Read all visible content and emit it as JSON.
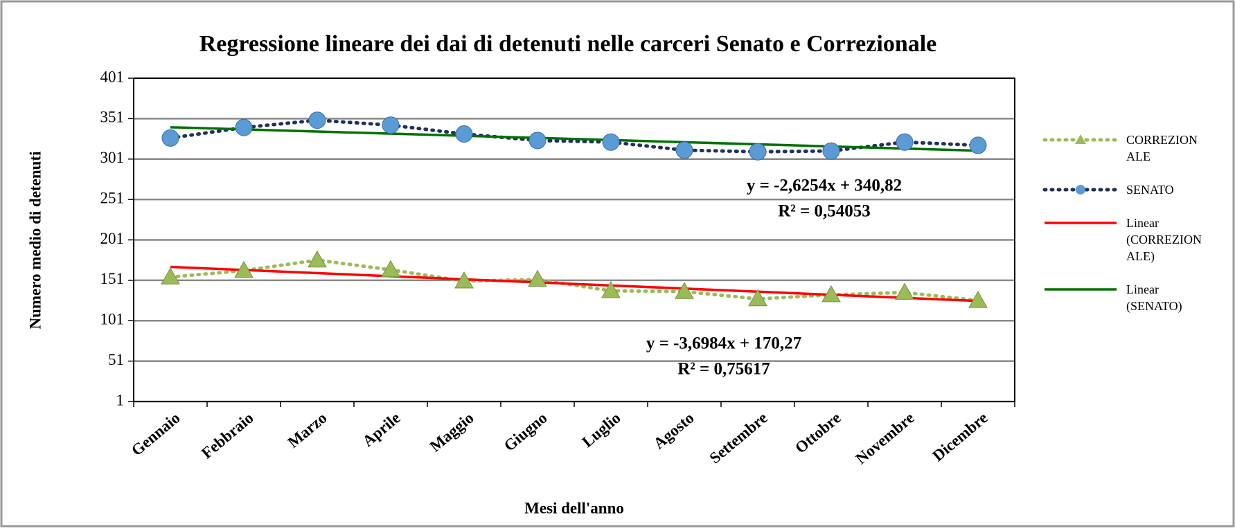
{
  "chart_data": {
    "type": "line",
    "title": "Regressione lineare dei dai di detenuti nelle carceri Senato e Correzionale",
    "x_label": "Mesi dell'anno",
    "y_label": "Numero medio di detenuti",
    "categories": [
      "Gennaio",
      "Febbraio",
      "Marzo",
      "Aprile",
      "Maggio",
      "Giugno",
      "Luglio",
      "Agosto",
      "Settembre",
      "Ottobre",
      "Novembre",
      "Dicembre"
    ],
    "series": [
      {
        "name": "CORREZIONALE",
        "color": "#9bbb59",
        "marker": "triangle",
        "values": [
          155,
          163,
          176,
          164,
          150,
          152,
          138,
          137,
          128,
          133,
          136,
          126
        ],
        "trendline": {
          "name": "Linear (CORREZIONALE)",
          "color": "#ff0000"
        }
      },
      {
        "name": "SENATO",
        "color": "#1f2f5f",
        "marker_color": "#5b9bd5",
        "marker": "circle",
        "values": [
          327,
          340,
          349,
          343,
          332,
          324,
          322,
          312,
          310,
          311,
          322,
          318
        ],
        "trendline": {
          "name": "Linear (SENATO)",
          "color": "#007000"
        }
      }
    ],
    "annotations": [
      "y = -2,6254x + 340,82",
      "R² = 0,54053",
      "y = -3,6984x + 170,27",
      "R² = 0,75617"
    ],
    "ylim": [
      1,
      401
    ],
    "yticks": [
      1,
      51,
      101,
      151,
      201,
      251,
      301,
      351,
      401
    ],
    "grid": true,
    "legend": "right"
  }
}
